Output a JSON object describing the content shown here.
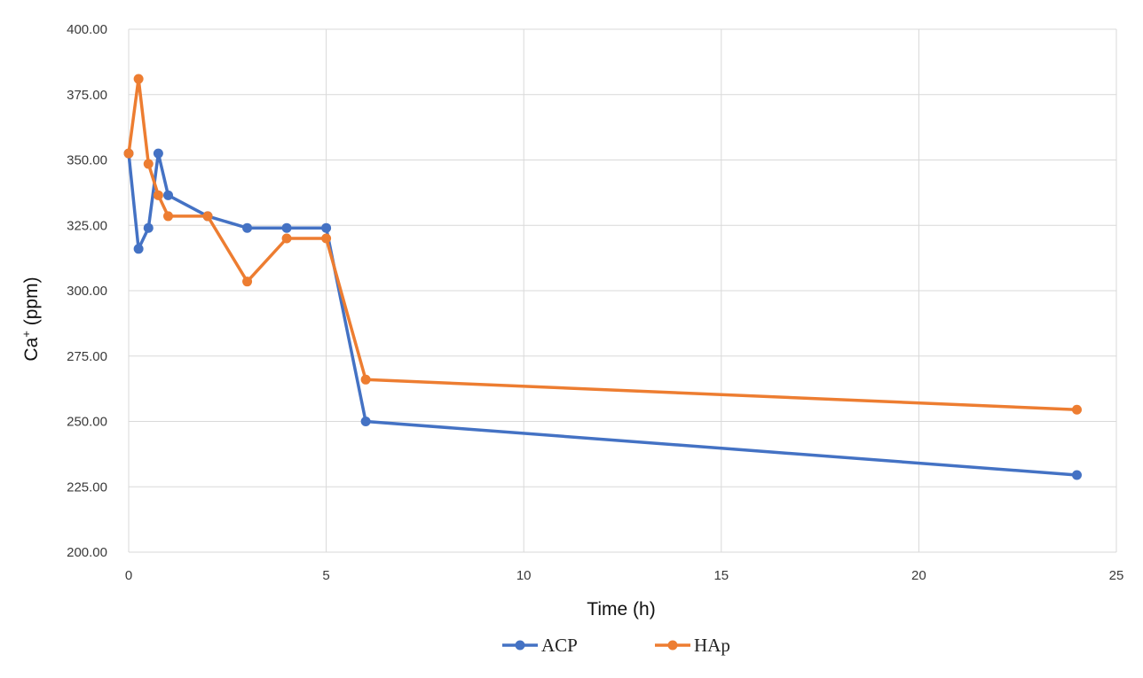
{
  "chart_data": {
    "type": "line",
    "title": "",
    "xlabel": "Time (h)",
    "ylabel_main": "Ca",
    "ylabel_sup": "+",
    "ylabel_unit": " (ppm)",
    "xlim": [
      0,
      25
    ],
    "ylim": [
      200,
      400
    ],
    "x_ticks": [
      0,
      5,
      10,
      15,
      20,
      25
    ],
    "y_ticks": [
      200,
      225,
      250,
      275,
      300,
      325,
      350,
      375,
      400
    ],
    "x_tick_labels": [
      "0",
      "5",
      "10",
      "15",
      "20",
      "25"
    ],
    "y_tick_labels": [
      "200.00",
      "225.00",
      "250.00",
      "275.00",
      "300.00",
      "325.00",
      "350.00",
      "375.00",
      "400.00"
    ],
    "grid": true,
    "legend_position": "bottom",
    "series": [
      {
        "name": "ACP",
        "color": "#4472c4",
        "x": [
          0,
          0.25,
          0.5,
          0.75,
          1,
          2,
          3,
          4,
          5,
          6,
          24
        ],
        "y": [
          352.5,
          316,
          324,
          352.5,
          336.5,
          328.5,
          324,
          324,
          324,
          250,
          229.5
        ]
      },
      {
        "name": "HAp",
        "color": "#ed7d31",
        "x": [
          0,
          0.25,
          0.5,
          0.75,
          1,
          2,
          3,
          4,
          5,
          6,
          24
        ],
        "y": [
          352.5,
          381,
          348.5,
          336.5,
          328.5,
          328.5,
          303.5,
          320,
          320,
          266,
          254.5
        ]
      }
    ]
  }
}
